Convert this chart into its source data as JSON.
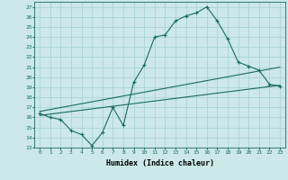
{
  "title": "",
  "xlabel": "Humidex (Indice chaleur)",
  "ylabel": "",
  "xlim": [
    -0.5,
    23.5
  ],
  "ylim": [
    13,
    27.5
  ],
  "xticks": [
    0,
    1,
    2,
    3,
    4,
    5,
    6,
    7,
    8,
    9,
    10,
    11,
    12,
    13,
    14,
    15,
    16,
    17,
    18,
    19,
    20,
    21,
    22,
    23
  ],
  "yticks": [
    13,
    14,
    15,
    16,
    17,
    18,
    19,
    20,
    21,
    22,
    23,
    24,
    25,
    26,
    27
  ],
  "bg_color": "#cce8e8",
  "grid_color": "#aad4d4",
  "line_color": "#1a6b5a",
  "line1_x": [
    0,
    1,
    2,
    3,
    4,
    5,
    6,
    7,
    8,
    9,
    10,
    11,
    12,
    13,
    14,
    15,
    16,
    17,
    18,
    19,
    20,
    21,
    22,
    23
  ],
  "line1_y": [
    16.4,
    16.0,
    15.8,
    14.7,
    14.3,
    13.2,
    14.5,
    17.0,
    15.2,
    19.5,
    21.2,
    24.0,
    24.2,
    25.6,
    26.1,
    26.4,
    27.0,
    25.6,
    23.8,
    21.5,
    21.1,
    20.7,
    19.3,
    19.1
  ],
  "line2_x": [
    0,
    23
  ],
  "line2_y": [
    16.2,
    19.2
  ],
  "line3_x": [
    0,
    23
  ],
  "line3_y": [
    16.6,
    21.0
  ]
}
